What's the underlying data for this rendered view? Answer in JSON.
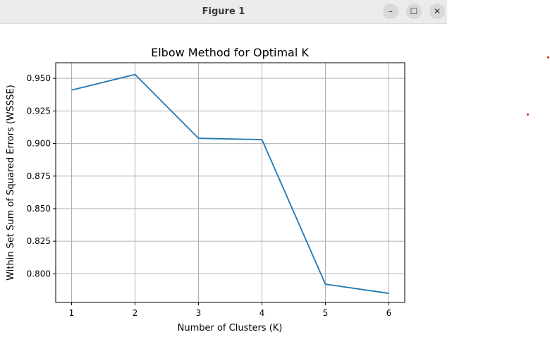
{
  "window": {
    "title": "Figure 1",
    "buttons": {
      "minimize": "–",
      "maximize": "☐",
      "close": "✕"
    }
  },
  "chart_data": {
    "type": "line",
    "title": "Elbow Method for Optimal K",
    "xlabel": "Number of Clusters (K)",
    "ylabel": "Within Set Sum of Squared Errors (WSSSE)",
    "x": [
      1,
      2,
      3,
      4,
      5,
      6
    ],
    "series": [
      {
        "values": [
          0.941,
          0.953,
          0.904,
          0.903,
          0.792,
          0.785
        ],
        "color": "#1f77b4"
      }
    ],
    "xlim": [
      0.75,
      6.25
    ],
    "ylim": [
      0.778,
      0.962
    ],
    "xticks": [
      1,
      2,
      3,
      4,
      5,
      6
    ],
    "xtick_labels": [
      "1",
      "2",
      "3",
      "4",
      "5",
      "6"
    ],
    "yticks": [
      0.8,
      0.825,
      0.85,
      0.875,
      0.9,
      0.925,
      0.95
    ],
    "ytick_labels": [
      "0.800",
      "0.825",
      "0.850",
      "0.875",
      "0.900",
      "0.925",
      "0.950"
    ],
    "grid": true
  }
}
